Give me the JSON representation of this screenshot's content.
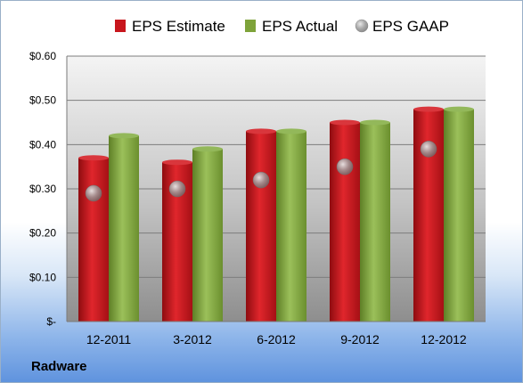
{
  "company": "Radware",
  "chart_data": {
    "type": "bar",
    "categories": [
      "12-2011",
      "3-2012",
      "6-2012",
      "9-2012",
      "12-2012"
    ],
    "series": [
      {
        "name": "EPS Estimate",
        "kind": "bar",
        "color": "#c8161d",
        "values": [
          0.37,
          0.36,
          0.43,
          0.45,
          0.48
        ]
      },
      {
        "name": "EPS Actual",
        "kind": "bar",
        "color": "#7ea33a",
        "values": [
          0.42,
          0.39,
          0.43,
          0.45,
          0.48
        ]
      },
      {
        "name": "EPS GAAP",
        "kind": "marker",
        "color": "#a8a8a8",
        "values": [
          0.29,
          0.3,
          0.32,
          0.35,
          0.39
        ]
      }
    ],
    "yticks": [
      {
        "value": 0,
        "label": "$-"
      },
      {
        "value": 0.1,
        "label": "$0.10"
      },
      {
        "value": 0.2,
        "label": "$0.20"
      },
      {
        "value": 0.3,
        "label": "$0.30"
      },
      {
        "value": 0.4,
        "label": "$0.40"
      },
      {
        "value": 0.5,
        "label": "$0.50"
      },
      {
        "value": 0.6,
        "label": "$0.60"
      }
    ],
    "ylim": [
      0,
      0.6
    ],
    "grid": true,
    "legend_position": "top"
  }
}
